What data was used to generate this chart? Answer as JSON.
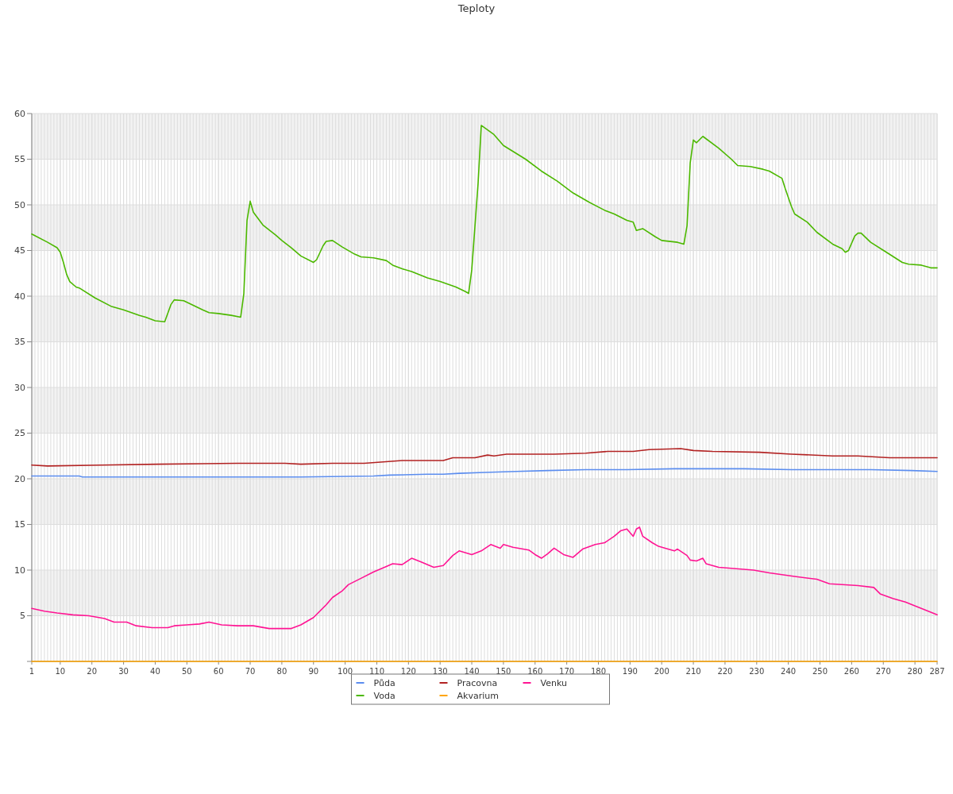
{
  "chart_data": {
    "type": "line",
    "title": "Teploty",
    "xlim": [
      1,
      287
    ],
    "xticks": [
      1,
      10,
      20,
      30,
      40,
      50,
      60,
      70,
      80,
      90,
      100,
      110,
      120,
      130,
      140,
      150,
      160,
      170,
      180,
      190,
      200,
      210,
      220,
      230,
      240,
      250,
      260,
      270,
      280,
      287
    ],
    "ylim": [
      0,
      60
    ],
    "yticks": [
      {
        "value": 0,
        "label": null
      },
      5,
      10,
      15,
      20,
      25,
      30,
      35,
      40,
      45,
      50,
      55,
      60
    ],
    "grid": true,
    "legend": "bottom",
    "marker": "none",
    "line_style": "solid",
    "series": [
      {
        "name": "Půda",
        "color": "#5b8def",
        "x": [
          1,
          16,
          17,
          66,
          86,
          109,
          114,
          126,
          131,
          136,
          144,
          154,
          164,
          176,
          189,
          204,
          216,
          226,
          241,
          254,
          266,
          279,
          287
        ],
        "values": [
          20.3,
          20.3,
          20.2,
          20.2,
          20.2,
          20.3,
          20.4,
          20.5,
          20.5,
          20.6,
          20.7,
          20.8,
          20.9,
          21.0,
          21.0,
          21.1,
          21.1,
          21.1,
          21.0,
          21.0,
          21.0,
          20.9,
          20.8
        ]
      },
      {
        "name": "Voda",
        "color": "#4cb800",
        "x": [
          1,
          6,
          9,
          10,
          11,
          12,
          13,
          15,
          16,
          21,
          26,
          30,
          35,
          37,
          40,
          43,
          45,
          46,
          49,
          52,
          55,
          57,
          60,
          64,
          67,
          68,
          69,
          70,
          71,
          74,
          78,
          80,
          83,
          86,
          90,
          91,
          93,
          94,
          96,
          99,
          103,
          105,
          109,
          113,
          115,
          118,
          121,
          126,
          130,
          135,
          138,
          139,
          140,
          142,
          143,
          147,
          150,
          157,
          162,
          167,
          172,
          177,
          182,
          185,
          189,
          191,
          192,
          194,
          198,
          200,
          205,
          207,
          208,
          209,
          210,
          211,
          213,
          218,
          222,
          224,
          228,
          232,
          234,
          238,
          239,
          241,
          242,
          246,
          249,
          254,
          257,
          258,
          259,
          261,
          262,
          263,
          266,
          271,
          276,
          278,
          282,
          285,
          287
        ],
        "values": [
          46.8,
          45.9,
          45.3,
          44.8,
          43.7,
          42.4,
          41.6,
          41.0,
          40.9,
          39.8,
          38.9,
          38.5,
          37.9,
          37.7,
          37.3,
          37.2,
          39.1,
          39.6,
          39.5,
          39.0,
          38.5,
          38.2,
          38.1,
          37.9,
          37.7,
          40.3,
          48.3,
          50.4,
          49.2,
          47.8,
          46.7,
          46.1,
          45.3,
          44.4,
          43.7,
          44.0,
          45.5,
          46.0,
          46.1,
          45.4,
          44.6,
          44.3,
          44.2,
          43.9,
          43.4,
          43.0,
          42.7,
          42.0,
          41.6,
          41.0,
          40.5,
          40.3,
          42.9,
          52.4,
          58.7,
          57.7,
          56.5,
          55.0,
          53.7,
          52.6,
          51.3,
          50.3,
          49.4,
          49.0,
          48.3,
          48.1,
          47.2,
          47.4,
          46.5,
          46.1,
          45.9,
          45.7,
          47.7,
          54.6,
          57.1,
          56.8,
          57.5,
          56.2,
          55.0,
          54.3,
          54.2,
          53.9,
          53.7,
          52.9,
          51.8,
          49.8,
          49.0,
          48.1,
          47.0,
          45.7,
          45.2,
          44.8,
          45.0,
          46.6,
          46.9,
          46.9,
          45.9,
          44.8,
          43.7,
          43.5,
          43.4,
          43.1,
          43.1
        ]
      },
      {
        "name": "Pracovna",
        "color": "#b22222",
        "x": [
          1,
          6,
          23,
          41,
          66,
          81,
          86,
          96,
          106,
          118,
          131,
          134,
          141,
          145,
          147,
          151,
          166,
          176,
          183,
          191,
          196,
          206,
          210,
          216,
          231,
          241,
          254,
          262,
          272,
          287
        ],
        "values": [
          21.5,
          21.4,
          21.5,
          21.6,
          21.7,
          21.7,
          21.6,
          21.7,
          21.7,
          22.0,
          22.0,
          22.3,
          22.3,
          22.6,
          22.5,
          22.7,
          22.7,
          22.8,
          23.0,
          23.0,
          23.2,
          23.3,
          23.1,
          23.0,
          22.9,
          22.7,
          22.5,
          22.5,
          22.3,
          22.3
        ]
      },
      {
        "name": "Akvarium",
        "color": "#ffa500",
        "x": [
          1,
          287
        ],
        "values": [
          0,
          0
        ]
      },
      {
        "name": "Venku",
        "color": "#ff1493",
        "x": [
          1,
          5,
          9,
          14,
          19,
          24,
          27,
          31,
          34,
          39,
          44,
          46,
          50,
          54,
          57,
          61,
          66,
          71,
          76,
          83,
          86,
          90,
          94,
          96,
          99,
          101,
          105,
          109,
          113,
          115,
          118,
          121,
          124,
          128,
          131,
          134,
          136,
          140,
          143,
          146,
          149,
          150,
          153,
          158,
          160,
          162,
          164,
          166,
          169,
          172,
          175,
          179,
          182,
          185,
          187,
          189,
          191,
          192,
          193,
          194,
          197,
          199,
          202,
          204,
          205,
          208,
          209,
          211,
          213,
          214,
          218,
          222,
          229,
          234,
          242,
          249,
          253,
          262,
          267,
          269,
          273,
          277,
          282,
          287
        ],
        "values": [
          5.8,
          5.5,
          5.3,
          5.1,
          5.0,
          4.7,
          4.3,
          4.3,
          3.9,
          3.7,
          3.7,
          3.9,
          4.0,
          4.1,
          4.3,
          4.0,
          3.9,
          3.9,
          3.6,
          3.6,
          4.0,
          4.8,
          6.2,
          7.0,
          7.7,
          8.4,
          9.1,
          9.8,
          10.4,
          10.7,
          10.6,
          11.3,
          10.9,
          10.3,
          10.5,
          11.6,
          12.1,
          11.7,
          12.1,
          12.8,
          12.4,
          12.8,
          12.5,
          12.2,
          11.7,
          11.3,
          11.8,
          12.4,
          11.7,
          11.4,
          12.3,
          12.8,
          13.0,
          13.7,
          14.3,
          14.5,
          13.7,
          14.5,
          14.7,
          13.7,
          13.0,
          12.6,
          12.3,
          12.1,
          12.3,
          11.6,
          11.1,
          11.0,
          11.3,
          10.7,
          10.3,
          10.2,
          10.0,
          9.7,
          9.3,
          9.0,
          8.5,
          8.3,
          8.1,
          7.4,
          6.9,
          6.5,
          5.8,
          5.1
        ]
      }
    ]
  }
}
